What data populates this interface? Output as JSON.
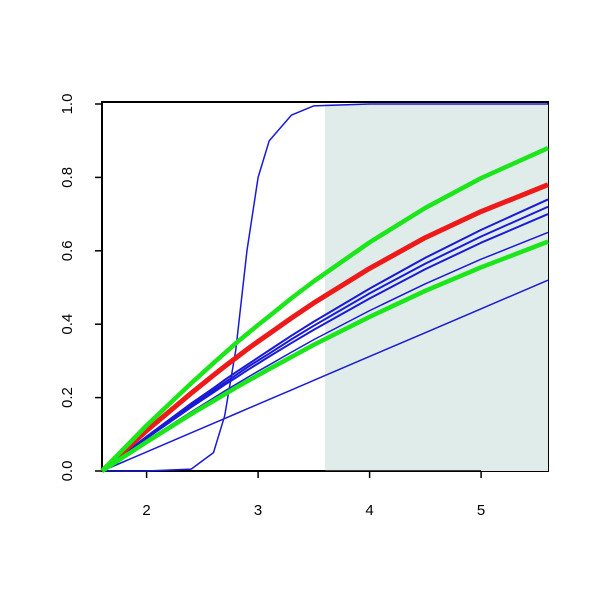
{
  "chart_data": {
    "type": "line",
    "x": [
      1.6,
      2,
      2.4,
      2.6,
      2.7,
      2.8,
      2.9,
      3,
      3.1,
      3.3,
      3.5,
      4,
      4.5,
      5,
      5.6
    ],
    "band": {
      "x": [
        3.6,
        5.6
      ],
      "color": "#e0ecea"
    },
    "series": [
      {
        "color": "#1a1ad6",
        "width": 1.5,
        "values": [
          0,
          0.052,
          0.104,
          0.13,
          0.143,
          0.156,
          0.169,
          0.182,
          0.195,
          0.221,
          0.247,
          0.312,
          0.377,
          0.442,
          0.52
        ]
      },
      {
        "color": "#1a1ad6",
        "width": 1.5,
        "values": [
          0,
          0.083,
          0.161,
          0.199,
          0.218,
          0.236,
          0.254,
          0.272,
          0.289,
          0.324,
          0.358,
          0.437,
          0.51,
          0.577,
          0.65
        ]
      },
      {
        "color": "#1a1ad6",
        "width": 2,
        "values": [
          0,
          0.089,
          0.174,
          0.214,
          0.235,
          0.254,
          0.274,
          0.293,
          0.312,
          0.349,
          0.385,
          0.47,
          0.55,
          0.622,
          0.7
        ]
      },
      {
        "color": "#1a1ad6",
        "width": 2,
        "values": [
          0,
          0.091,
          0.179,
          0.22,
          0.241,
          0.261,
          0.282,
          0.301,
          0.32,
          0.359,
          0.396,
          0.484,
          0.565,
          0.639,
          0.72
        ]
      },
      {
        "color": "#1a1ad6",
        "width": 2,
        "values": [
          0,
          0.094,
          0.184,
          0.226,
          0.248,
          0.269,
          0.289,
          0.309,
          0.329,
          0.369,
          0.407,
          0.497,
          0.581,
          0.657,
          0.74
        ]
      },
      {
        "color": "#1a1ad6",
        "width": 1.5,
        "values": [
          0,
          0,
          0.005,
          0.05,
          0.15,
          0.33,
          0.6,
          0.8,
          0.9,
          0.97,
          0.995,
          1,
          1,
          1,
          1
        ]
      },
      {
        "color": "#ee1a1a",
        "width": 5,
        "values": [
          0,
          0.11,
          0.212,
          0.261,
          0.285,
          0.308,
          0.331,
          0.353,
          0.374,
          0.417,
          0.458,
          0.552,
          0.636,
          0.707,
          0.78
        ]
      },
      {
        "color": "#1ae61a",
        "width": 4.5,
        "values": [
          0,
          0.079,
          0.155,
          0.191,
          0.209,
          0.227,
          0.244,
          0.261,
          0.278,
          0.311,
          0.344,
          0.42,
          0.491,
          0.555,
          0.625
        ]
      },
      {
        "color": "#1ae61a",
        "width": 4.5,
        "values": [
          0,
          0.124,
          0.239,
          0.294,
          0.321,
          0.348,
          0.373,
          0.398,
          0.422,
          0.471,
          0.517,
          0.623,
          0.717,
          0.798,
          0.88
        ]
      }
    ],
    "xlim": [
      1.6,
      5.6
    ],
    "ylim": [
      0,
      1
    ],
    "xticks": [
      2,
      3,
      4,
      5
    ],
    "yticks": [
      {
        "value": 0,
        "label": "0.0"
      },
      {
        "value": 0.2,
        "label": "0.2"
      },
      {
        "value": 0.4,
        "label": "0.4"
      },
      {
        "value": 0.6,
        "label": "0.6"
      },
      {
        "value": 0.8,
        "label": "0.8"
      },
      {
        "value": 1,
        "label": "1.0"
      }
    ]
  }
}
